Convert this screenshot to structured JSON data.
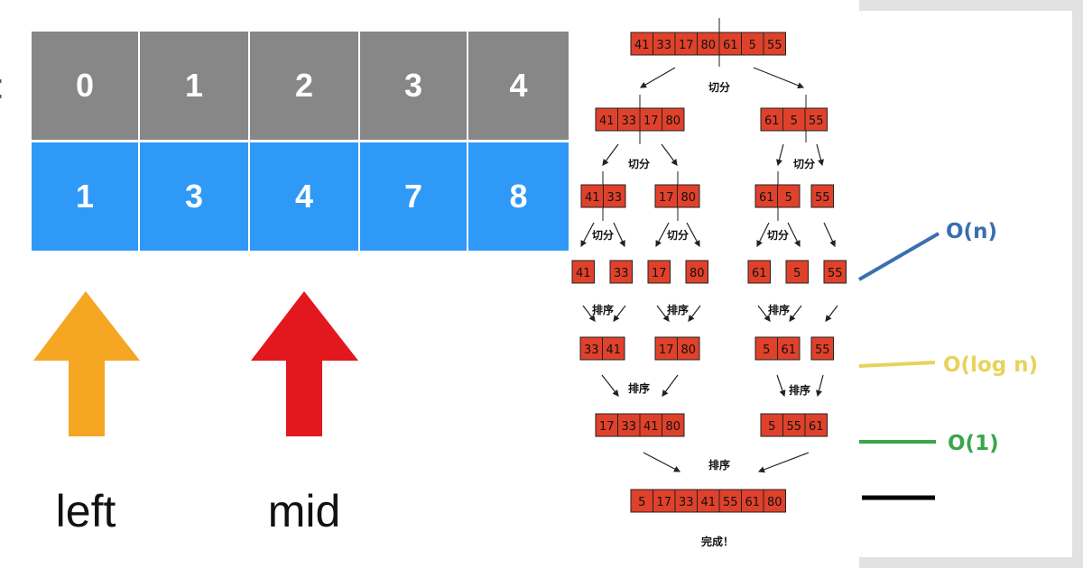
{
  "array_panel": {
    "index_fragment": ":",
    "indices": [
      "0",
      "1",
      "2",
      "3",
      "4"
    ],
    "values": [
      "1",
      "3",
      "4",
      "7",
      "8"
    ],
    "pointers": [
      {
        "label": "left",
        "color": "#F5A623",
        "index": 0
      },
      {
        "label": "mid",
        "color": "#E3171E",
        "index": 2
      }
    ],
    "colors": {
      "index_row": "#878787",
      "value_row": "#2E99F7"
    }
  },
  "merge_sort": {
    "cell_color": "#E0412B",
    "arrays": [
      {
        "values": [
          "41",
          "33",
          "17",
          "80",
          "61",
          "5",
          "55"
        ]
      },
      {
        "values": [
          "41",
          "33",
          "17",
          "80"
        ]
      },
      {
        "values": [
          "61",
          "5",
          "55"
        ]
      },
      {
        "values": [
          "41",
          "33"
        ]
      },
      {
        "values": [
          "17",
          "80"
        ]
      },
      {
        "values": [
          "61",
          "5"
        ]
      },
      {
        "values": [
          "55"
        ]
      },
      {
        "values": [
          "41"
        ]
      },
      {
        "values": [
          "33"
        ]
      },
      {
        "values": [
          "17"
        ]
      },
      {
        "values": [
          "80"
        ]
      },
      {
        "values": [
          "61"
        ]
      },
      {
        "values": [
          "5"
        ]
      },
      {
        "values": [
          "55"
        ]
      },
      {
        "values": [
          "33",
          "41"
        ]
      },
      {
        "values": [
          "17",
          "80"
        ]
      },
      {
        "values": [
          "5",
          "61"
        ]
      },
      {
        "values": [
          "55"
        ]
      },
      {
        "values": [
          "17",
          "33",
          "41",
          "80"
        ]
      },
      {
        "values": [
          "5",
          "55",
          "61"
        ]
      },
      {
        "values": [
          "5",
          "17",
          "33",
          "41",
          "55",
          "61",
          "80"
        ]
      }
    ],
    "split_label": "切分",
    "sort_label": "排序",
    "done_label": "完成！"
  },
  "complexity_panel": {
    "lines": [
      {
        "label": "O(n)",
        "color": "#3A6FB0"
      },
      {
        "label": "O(log n)",
        "color": "#E6D35A"
      },
      {
        "label": "O(1)",
        "color": "#3AA64A"
      },
      {
        "label": "",
        "color": "#000000"
      }
    ]
  }
}
